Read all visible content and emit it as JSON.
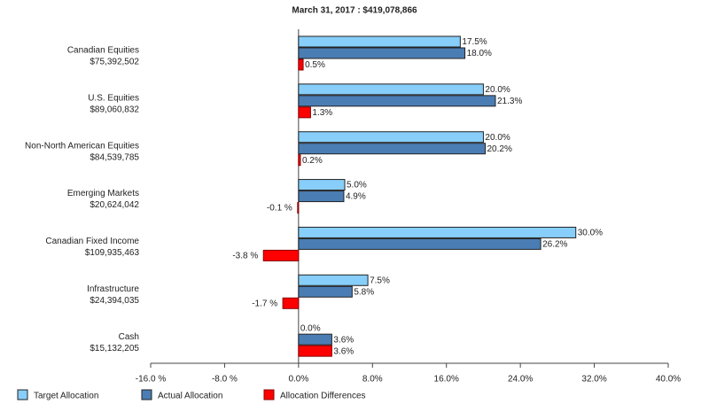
{
  "chart_data": {
    "type": "hbar",
    "title": "March 31, 2017 : $419,078,866",
    "categories": [
      "Canadian Equities",
      "U.S. Equities",
      "Non-North American Equities",
      "Emerging Markets",
      "Canadian Fixed Income",
      "Infrastructure",
      "Cash"
    ],
    "category_amounts": [
      "$75,392,502",
      "$89,060,832",
      "$84,539,785",
      "$20,624,042",
      "$109,935,463",
      "$24,394,035",
      "$15,132,205"
    ],
    "series": [
      {
        "name": "Target Allocation",
        "color": "#87cefa",
        "values": [
          17.5,
          20.0,
          20.0,
          5.0,
          30.0,
          7.5,
          0.0
        ],
        "value_labels": [
          "17.5%",
          "20.0%",
          "20.0%",
          "5.0%",
          "30.0%",
          "7.5%",
          "0.0%"
        ]
      },
      {
        "name": "Actual Allocation",
        "color": "#4a7db4",
        "values": [
          18.0,
          21.3,
          20.2,
          4.9,
          26.2,
          5.8,
          3.6
        ],
        "value_labels": [
          "18.0%",
          "21.3%",
          "20.2%",
          "4.9%",
          "26.2%",
          "5.8%",
          "3.6%"
        ]
      },
      {
        "name": "Allocation Differences",
        "color": "#ff0000",
        "values": [
          0.5,
          1.3,
          0.2,
          -0.1,
          -3.8,
          -1.7,
          3.6
        ],
        "value_labels": [
          "0.5%",
          "1.3%",
          "0.2%",
          "-0.1 %",
          "-3.8 %",
          "-1.7 %",
          "3.6%"
        ]
      }
    ],
    "xlim": [
      -16,
      40
    ],
    "xticks": [
      {
        "value": -16,
        "label": "-16.0 %"
      },
      {
        "value": -8,
        "label": "-8.0 %"
      },
      {
        "value": 0,
        "label": "0.0%"
      },
      {
        "value": 8,
        "label": "8.0%"
      },
      {
        "value": 16,
        "label": "16.0%"
      },
      {
        "value": 24,
        "label": "24.0%"
      },
      {
        "value": 32,
        "label": "32.0%"
      },
      {
        "value": 40,
        "label": "40.0%"
      }
    ]
  }
}
